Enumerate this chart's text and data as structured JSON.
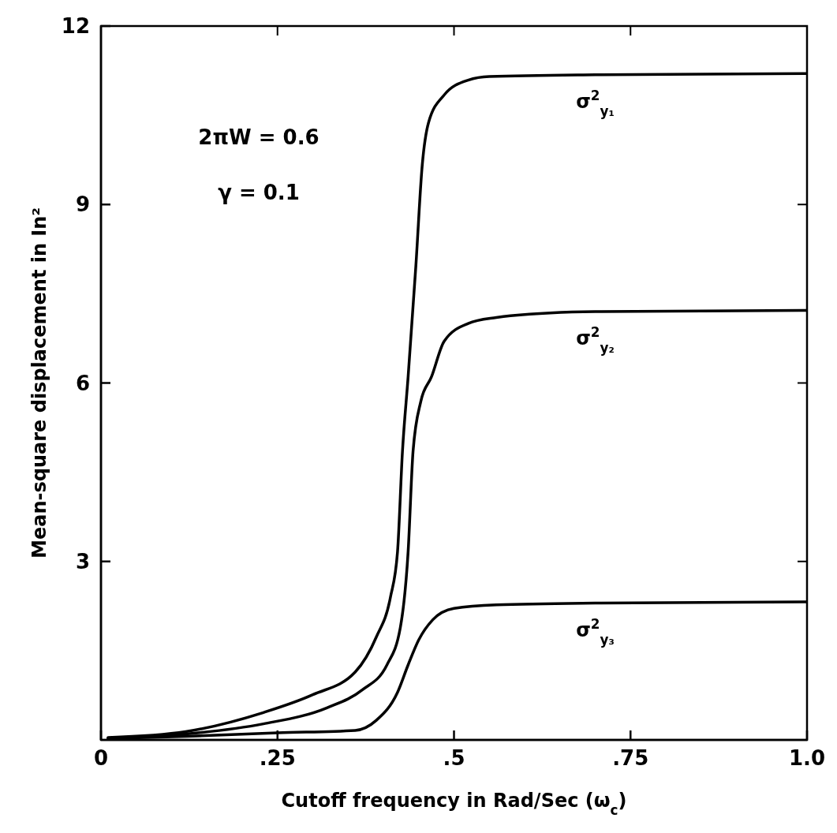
{
  "chart_data": {
    "type": "line",
    "xlabel": "Cutoff frequency in Rad/Sec (ω$_{c}$)",
    "ylabel": "Mean-square displacement in In²",
    "annotations": [
      "2πW = 0.6",
      "γ = 0.1"
    ],
    "xlim": [
      0,
      1
    ],
    "xticks": [
      0,
      {
        "value": 0.25,
        "label": ".25"
      },
      {
        "value": 0.5,
        "label": ".5"
      },
      {
        "value": 0.75,
        "label": ".75"
      },
      {
        "value": 1,
        "label": "1.0"
      }
    ],
    "ylim": [
      0,
      12
    ],
    "yticks": [
      3,
      6,
      9,
      12
    ],
    "grid": false,
    "legend": false,
    "marker": "none",
    "line_style": "solid",
    "series": [
      {
        "name": "σ$^{2}$$_{y₁}$",
        "color": "#000000",
        "x": [
          0.01,
          0.12,
          0.23,
          0.3,
          0.36,
          0.39,
          0.41,
          0.42,
          0.427,
          0.435,
          0.446,
          0.455,
          0.464,
          0.486,
          0.52,
          0.55,
          0.7,
          1.0
        ],
        "values": [
          0.04,
          0.14,
          0.46,
          0.76,
          1.14,
          1.73,
          2.4,
          3.16,
          4.85,
          6.1,
          7.97,
          9.66,
          10.38,
          10.84,
          11.09,
          11.15,
          11.18,
          11.2
        ]
      },
      {
        "name": "σ$^{2}$$_{y₂}$",
        "color": "#000000",
        "x": [
          0.01,
          0.12,
          0.23,
          0.32,
          0.37,
          0.405,
          0.424,
          0.435,
          0.442,
          0.453,
          0.468,
          0.486,
          0.52,
          0.56,
          0.58,
          0.7,
          1.0
        ],
        "values": [
          0.03,
          0.1,
          0.27,
          0.54,
          0.84,
          1.26,
          1.89,
          3.16,
          4.85,
          5.69,
          6.1,
          6.7,
          7.0,
          7.1,
          7.13,
          7.2,
          7.22
        ]
      },
      {
        "name": "σ$^{2}$$_{y₃}$",
        "color": "#000000",
        "x": [
          0.01,
          0.12,
          0.25,
          0.36,
          0.39,
          0.42,
          0.435,
          0.45,
          0.47,
          0.5,
          0.56,
          0.7,
          1.0
        ],
        "values": [
          0.02,
          0.06,
          0.12,
          0.16,
          0.33,
          0.8,
          1.26,
          1.68,
          2.02,
          2.21,
          2.27,
          2.3,
          2.32
        ]
      }
    ]
  }
}
